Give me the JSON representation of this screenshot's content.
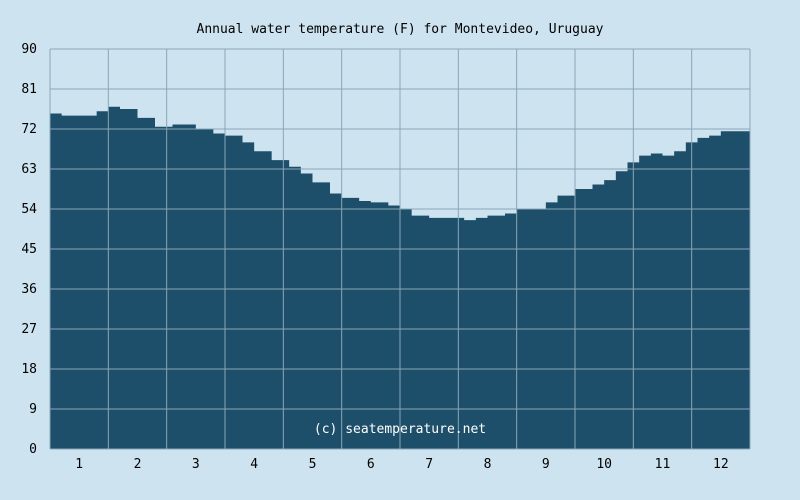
{
  "chart_data": {
    "type": "area",
    "title": "Annual water temperature (F) for Montevideo, Uruguay",
    "watermark": "(c) seatemperature.net",
    "xlabel": "",
    "ylabel": "",
    "x_ticks": [
      "1",
      "2",
      "3",
      "4",
      "5",
      "6",
      "7",
      "8",
      "9",
      "10",
      "11",
      "12"
    ],
    "y_ticks": [
      "0",
      "9",
      "18",
      "27",
      "36",
      "45",
      "54",
      "63",
      "72",
      "81",
      "90"
    ],
    "ylim": [
      0,
      90
    ],
    "xlim": [
      0.5,
      12.5
    ],
    "grid": true,
    "colors": {
      "fill": "#1e4f6a",
      "background": "#cde3ef",
      "grid": "#8aa6b8",
      "watermark": "#ffffff"
    },
    "series": [
      {
        "x": [
          0.5,
          0.7,
          1.0,
          1.3,
          1.5,
          1.7,
          2.0,
          2.3,
          2.6,
          2.8,
          3.0,
          3.3,
          3.5,
          3.8,
          4.0,
          4.3,
          4.6,
          4.8,
          5.0,
          5.3,
          5.5,
          5.8,
          6.0,
          6.3,
          6.5,
          6.7,
          7.0,
          7.4,
          7.6,
          7.8,
          8.0,
          8.3,
          8.5,
          8.8,
          9.0,
          9.2,
          9.5,
          9.8,
          10.0,
          10.2,
          10.4,
          10.6,
          10.8,
          11.0,
          11.2,
          11.4,
          11.6,
          11.8,
          12.0,
          12.5
        ],
        "values": [
          75.5,
          75.0,
          75.0,
          76.0,
          77.0,
          76.5,
          74.5,
          72.5,
          73.0,
          73.0,
          72.0,
          71.0,
          70.5,
          69.0,
          67.0,
          65.0,
          63.5,
          62.0,
          60.0,
          57.5,
          56.5,
          55.8,
          55.5,
          54.8,
          54.0,
          52.5,
          52.0,
          52.0,
          51.5,
          52.0,
          52.5,
          53.0,
          54.0,
          54.0,
          55.5,
          57.0,
          58.5,
          59.5,
          60.5,
          62.5,
          64.5,
          66.0,
          66.5,
          66.0,
          67.0,
          69.0,
          70.0,
          70.5,
          71.5,
          72.0
        ]
      }
    ]
  }
}
